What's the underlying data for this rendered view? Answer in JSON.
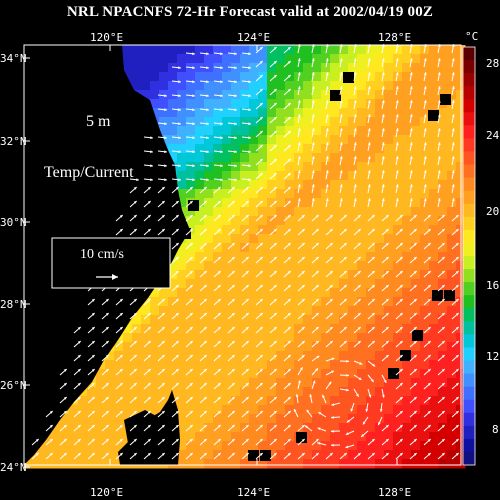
{
  "title": "NRL NPACNFS 72-Hr Forecast valid at 2002/04/19 00Z",
  "depth_label": "5 m",
  "field_label": "Temp/Current",
  "vector_scale_label": "10 cm/s",
  "lon_labels": [
    "120°E",
    "124°E",
    "128°E"
  ],
  "lat_labels": [
    "34°N",
    "32°N",
    "30°N",
    "28°N",
    "26°N",
    "24°N"
  ],
  "colorbar": {
    "unit": "°C",
    "tick_labels": [
      "28",
      "24",
      "20",
      "16",
      "12",
      "8"
    ],
    "colors": [
      "#5a0000",
      "#7a0000",
      "#9a0000",
      "#b80000",
      "#d40000",
      "#ea1010",
      "#ff2020",
      "#ff3a20",
      "#ff5520",
      "#ff7020",
      "#ff8a20",
      "#ffa020",
      "#ffb820",
      "#ffd020",
      "#ffe820",
      "#f0f020",
      "#c8f020",
      "#90e020",
      "#50d020",
      "#20c020",
      "#00c060",
      "#00c0a0",
      "#00c8d8",
      "#20d0ff",
      "#40b0ff",
      "#4090ff",
      "#4070ff",
      "#4050ff",
      "#3030e0",
      "#2020c0",
      "#1010a0",
      "#101080"
    ]
  },
  "colors": {
    "land": "#000000",
    "background": "#000000",
    "vectors": "#ffffff"
  }
}
